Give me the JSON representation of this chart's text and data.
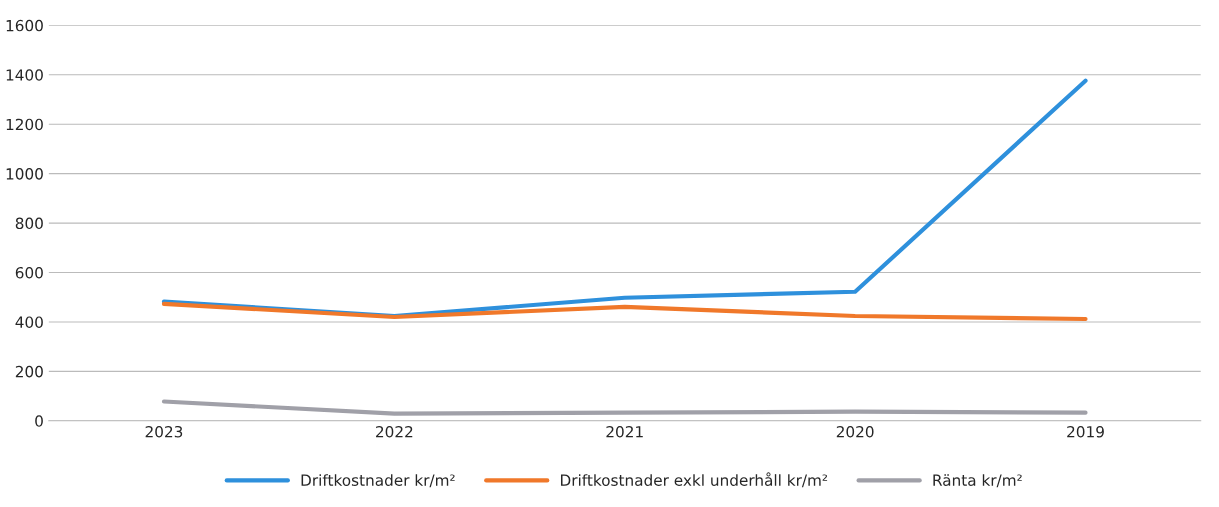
{
  "chart_data": {
    "type": "line",
    "categories": [
      "2023",
      "2022",
      "2021",
      "2020",
      "2019"
    ],
    "series": [
      {
        "name": "Driftkostnader kr/m²",
        "color": "#2e90dc",
        "values": [
          482,
          424,
          498,
          522,
          1376
        ]
      },
      {
        "name": "Driftkostnader exkl underhåll kr/m²",
        "color": "#f0782a",
        "values": [
          473,
          420,
          461,
          424,
          412
        ]
      },
      {
        "name": "Ränta kr/m²",
        "color": "#a0a0a8",
        "values": [
          78,
          29,
          33,
          37,
          33
        ]
      }
    ],
    "ylim": [
      0,
      1600
    ],
    "yticks": [
      0,
      200,
      400,
      600,
      800,
      1000,
      1200,
      1400,
      1600
    ],
    "grid": "y",
    "legend": "bottom"
  }
}
